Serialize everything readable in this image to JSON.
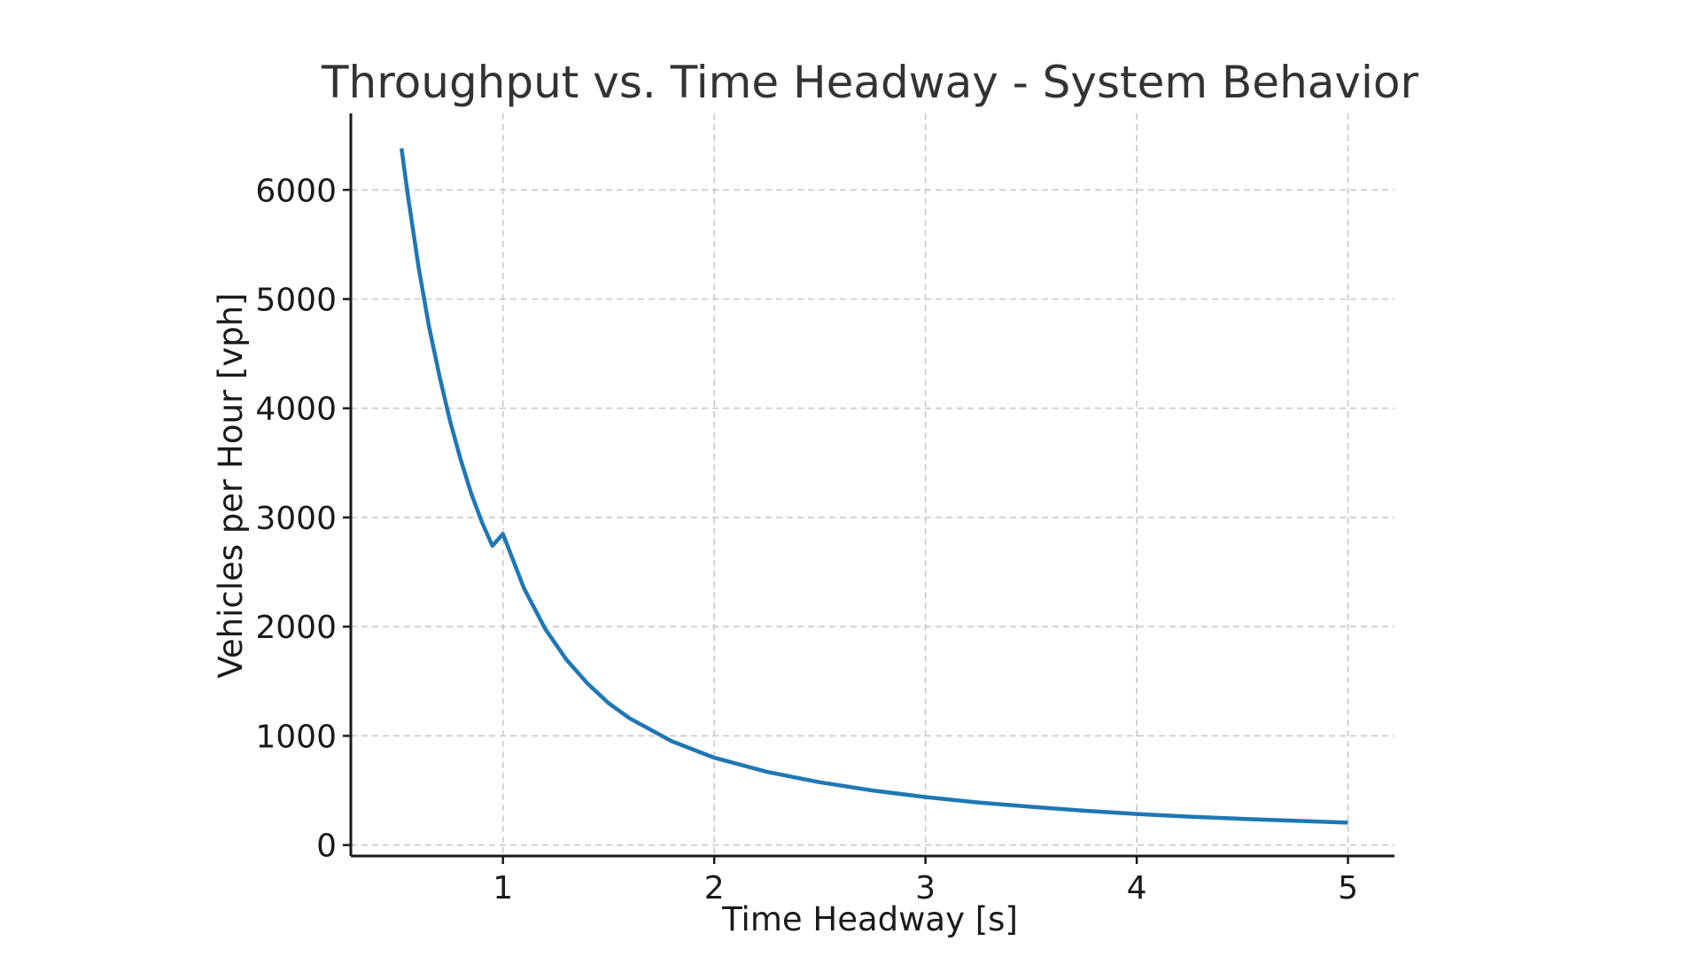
{
  "chart_data": {
    "type": "line",
    "title": "Throughput vs. Time Headway - System Behavior",
    "xlabel": "Time Headway [s]",
    "ylabel": "Vehicles per Hour [vph]",
    "xlim": [
      0.28,
      5.22
    ],
    "ylim": [
      -100,
      6700
    ],
    "x_ticks": [
      1,
      2,
      3,
      4,
      5
    ],
    "y_ticks": [
      0,
      1000,
      2000,
      3000,
      4000,
      5000,
      6000
    ],
    "grid": true,
    "series": [
      {
        "color": "#1f77b4",
        "x": [
          0.52,
          0.55,
          0.6,
          0.65,
          0.7,
          0.75,
          0.8,
          0.85,
          0.9,
          0.95,
          1.0,
          1.1,
          1.2,
          1.3,
          1.4,
          1.5,
          1.6,
          1.8,
          2.0,
          2.25,
          2.5,
          2.75,
          3.0,
          3.25,
          3.5,
          3.75,
          4.0,
          4.25,
          4.5,
          4.75,
          5.0
        ],
        "y": [
          6380,
          5950,
          5300,
          4750,
          4290,
          3880,
          3530,
          3220,
          2960,
          2740,
          2850,
          2350,
          1980,
          1700,
          1480,
          1300,
          1160,
          950,
          800,
          670,
          575,
          500,
          440,
          390,
          350,
          315,
          285,
          260,
          240,
          222,
          205
        ]
      }
    ]
  }
}
